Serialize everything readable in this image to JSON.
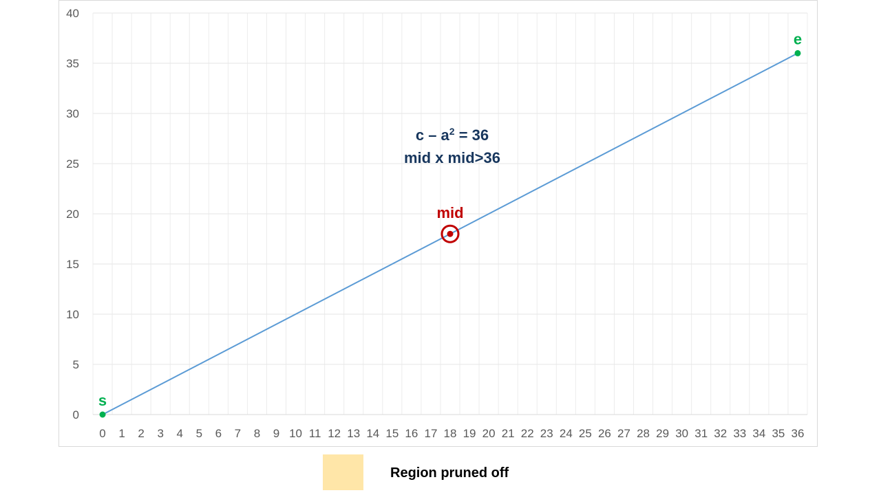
{
  "chart_data": {
    "type": "line",
    "xlim": [
      0,
      36
    ],
    "ylim": [
      0,
      40
    ],
    "x_ticks": [
      0,
      1,
      2,
      3,
      4,
      5,
      6,
      7,
      8,
      9,
      10,
      11,
      12,
      13,
      14,
      15,
      16,
      17,
      18,
      19,
      20,
      21,
      22,
      23,
      24,
      25,
      26,
      27,
      28,
      29,
      30,
      31,
      32,
      33,
      34,
      35,
      36
    ],
    "y_ticks": [
      0,
      5,
      10,
      15,
      20,
      25,
      30,
      35,
      40
    ],
    "grid": true,
    "series": [
      {
        "x": [
          0,
          36
        ],
        "y": [
          0,
          36
        ],
        "color": "#5b9bd5"
      }
    ],
    "points": [
      {
        "label": "s",
        "x": 0,
        "y": 0,
        "color": "#00b050"
      },
      {
        "label": "e",
        "x": 36,
        "y": 36,
        "color": "#00b050"
      },
      {
        "label": "mid",
        "x": 18,
        "y": 18,
        "color": "#c00000",
        "circled": true
      }
    ],
    "annotations": {
      "line1_prefix": "c – a",
      "line1_sup": "2",
      "line1_suffix": " = 36",
      "line2": "mid x mid>36"
    },
    "xlabel": "",
    "ylabel": ""
  },
  "legend": {
    "label": "Region pruned off",
    "swatch_color": "#ffe6a8"
  }
}
